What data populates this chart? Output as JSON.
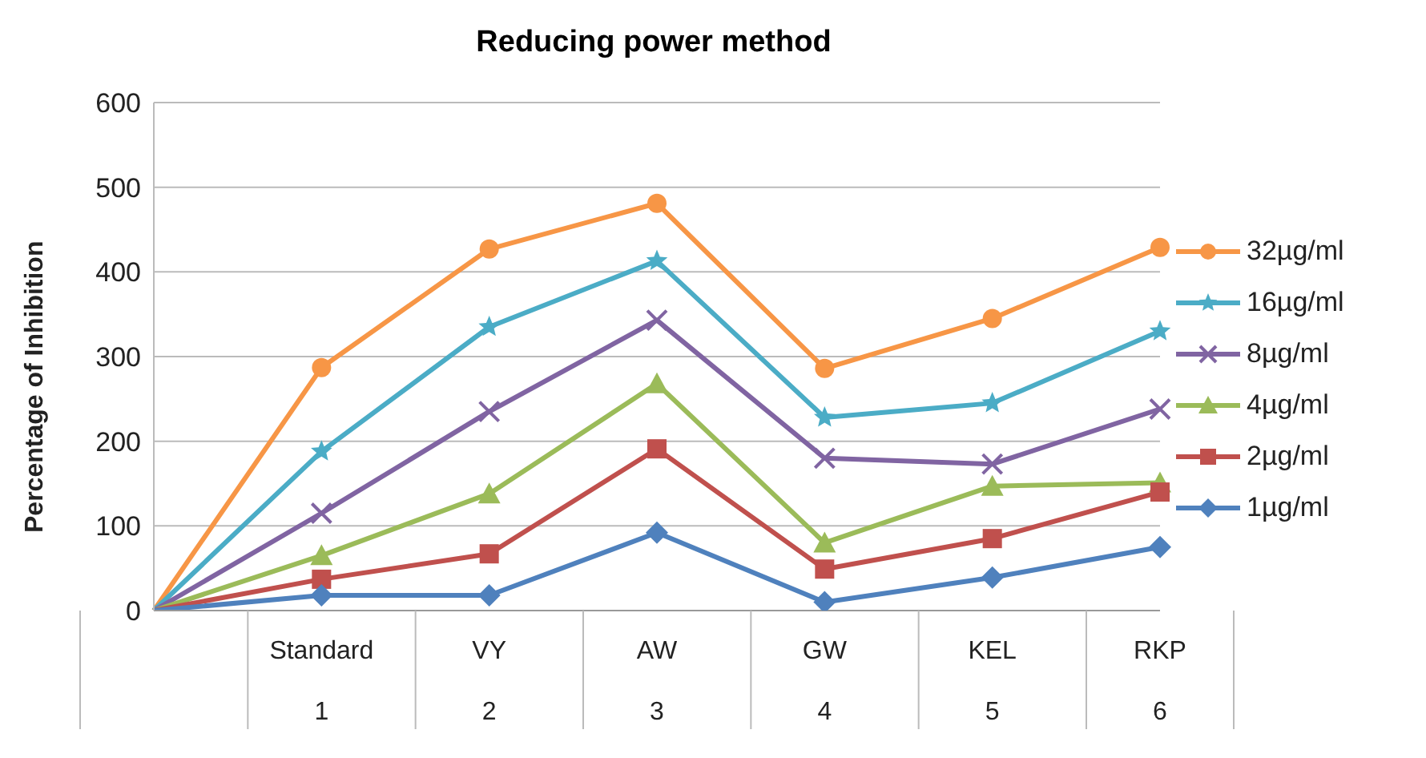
{
  "chart_data": {
    "type": "line",
    "title": "Reducing power method",
    "ylabel": "Percentage of Inhibition",
    "categories": [
      null,
      "Standard\n1",
      "VY\n2",
      "AW\n3",
      "GW\n4",
      "KEL\n5",
      "RKP\n6"
    ],
    "series": [
      {
        "name": "32µg/ml",
        "color": "#f79646",
        "marker": "circle",
        "values": [
          0,
          287,
          427,
          481,
          286,
          345,
          429
        ]
      },
      {
        "name": "16µg/ml",
        "color": "#4bacc6",
        "marker": "star",
        "values": [
          0,
          188,
          335,
          413,
          228,
          245,
          330
        ]
      },
      {
        "name": "8µg/ml",
        "color": "#8064a2",
        "marker": "cross",
        "values": [
          0,
          115,
          235,
          343,
          180,
          173,
          238
        ]
      },
      {
        "name": "4µg/ml",
        "color": "#9bbb59",
        "marker": "triangle",
        "values": [
          0,
          65,
          138,
          268,
          80,
          147,
          151
        ]
      },
      {
        "name": "2µg/ml",
        "color": "#c0504d",
        "marker": "square",
        "values": [
          0,
          37,
          67,
          191,
          49,
          85,
          140
        ]
      },
      {
        "name": "1µg/ml",
        "color": "#4f81bd",
        "marker": "diamond",
        "values": [
          0,
          18,
          18,
          92,
          10,
          39,
          75
        ]
      }
    ],
    "ylim": [
      0,
      600
    ],
    "yticks": [
      0,
      100,
      200,
      300,
      400,
      500,
      600
    ],
    "grid": "y",
    "legend": "right",
    "line_style": "solid"
  }
}
